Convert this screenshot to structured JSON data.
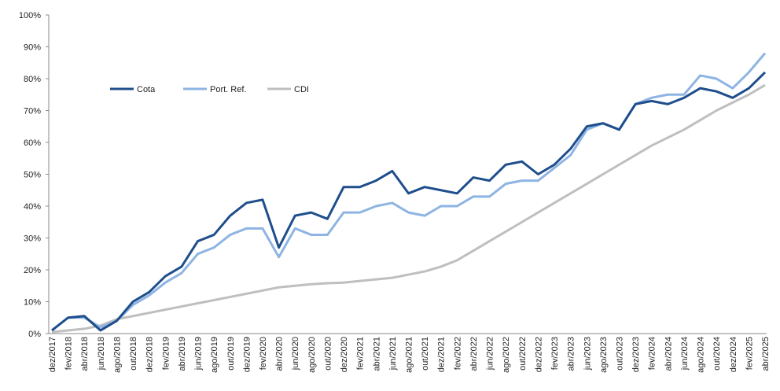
{
  "chart_data": {
    "type": "line",
    "categories": [
      "dez/2017",
      "fev/2018",
      "abr/2018",
      "jun/2018",
      "ago/2018",
      "out/2018",
      "dez/2018",
      "fev/2019",
      "abr/2019",
      "jun/2019",
      "ago/2019",
      "out/2019",
      "dez/2019",
      "fev/2020",
      "abr/2020",
      "jun/2020",
      "ago/2020",
      "out/2020",
      "dez/2020",
      "fev/2021",
      "abr/2021",
      "jun/2021",
      "ago/2021",
      "out/2021",
      "dez/2021",
      "fev/2022",
      "abr/2022",
      "jun/2022",
      "ago/2022",
      "out/2022",
      "dez/2022",
      "fev/2023",
      "abr/2023",
      "jun/2023",
      "ago/2023",
      "out/2023",
      "dez/2023",
      "fev/2024",
      "abr/2024",
      "jun/2024",
      "ago/2024",
      "out/2024",
      "dez/2024",
      "fev/2025",
      "abr/2025"
    ],
    "series": [
      {
        "name": "Cota",
        "color": "#1f4e8c",
        "values": [
          1,
          5,
          5.5,
          1,
          4,
          10,
          13,
          18,
          21,
          29,
          31,
          37,
          41,
          42,
          27,
          37,
          38,
          36,
          46,
          46,
          48,
          51,
          44,
          46,
          45,
          44,
          49,
          48,
          53,
          54,
          50,
          53,
          58,
          65,
          66,
          64,
          72,
          73,
          72,
          74,
          77,
          76,
          74,
          77,
          82
        ]
      },
      {
        "name": "Port. Ref.",
        "color": "#8eb4e3",
        "values": [
          1,
          5,
          5,
          2,
          4,
          9,
          12,
          16,
          19,
          25,
          27,
          31,
          33,
          33,
          24,
          33,
          31,
          31,
          38,
          38,
          40,
          41,
          38,
          37,
          40,
          40,
          43,
          43,
          47,
          48,
          48,
          52,
          56,
          64,
          66,
          64,
          72,
          74,
          75,
          75,
          81,
          80,
          77,
          82,
          88
        ]
      },
      {
        "name": "CDI",
        "color": "#bfbfbf",
        "values": [
          0.5,
          1,
          1.5,
          2.5,
          4.5,
          5.5,
          6.5,
          7.5,
          8.5,
          9.5,
          10.5,
          11.5,
          12.5,
          13.5,
          14.5,
          15,
          15.5,
          15.8,
          16,
          16.5,
          17,
          17.5,
          18.5,
          19.5,
          21,
          23,
          26,
          29,
          32,
          35,
          38,
          41,
          44,
          47,
          50,
          53,
          56,
          59,
          61.5,
          64,
          67,
          70,
          72.5,
          75,
          78
        ]
      }
    ],
    "ylim": [
      0,
      100
    ],
    "yticks": [
      {
        "value": 0,
        "label": "0%"
      },
      {
        "value": 10,
        "label": "10%"
      },
      {
        "value": 20,
        "label": "20%"
      },
      {
        "value": 30,
        "label": "30%"
      },
      {
        "value": 40,
        "label": "40%"
      },
      {
        "value": 50,
        "label": "50%"
      },
      {
        "value": 60,
        "label": "60%"
      },
      {
        "value": 70,
        "label": "70%"
      },
      {
        "value": 80,
        "label": "80%"
      },
      {
        "value": 90,
        "label": "90%"
      },
      {
        "value": 100,
        "label": "100%"
      }
    ],
    "grid": false,
    "legend": "top-left"
  }
}
